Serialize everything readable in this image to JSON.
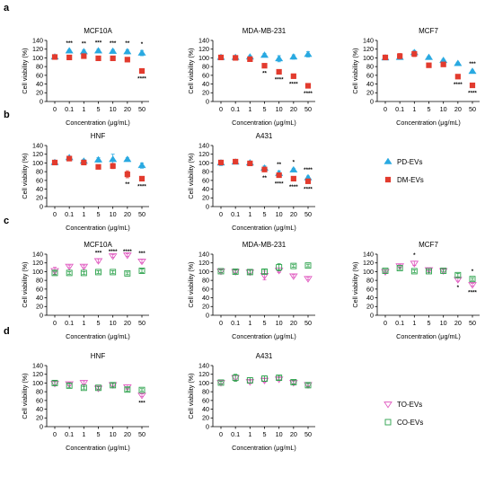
{
  "colors": {
    "PD-EVs": "#29a9e1",
    "DM-EVs": "#e23b2e",
    "TO-EVs": "#e05bc0",
    "CO-EVs": "#2aa14a"
  },
  "panels": [
    {
      "letter": "a"
    },
    {
      "letter": "b"
    },
    {
      "letter": "c"
    },
    {
      "letter": "d"
    }
  ],
  "legends": [
    {
      "entries": [
        {
          "name": "PD-EVs",
          "color": "#29a9e1",
          "marker": "triangle-up-filled"
        },
        {
          "name": "DM-EVs",
          "color": "#e23b2e",
          "marker": "square-filled"
        }
      ]
    },
    {
      "entries": [
        {
          "name": "TO-EVs",
          "color": "#e05bc0",
          "marker": "triangle-down-open"
        },
        {
          "name": "CO-EVs",
          "color": "#2aa14a",
          "marker": "square-open"
        }
      ]
    }
  ],
  "chart_data": [
    {
      "type": "scatter",
      "panel": "a",
      "title": "MCF10A",
      "xlabel": "Concentration (μg/mL)",
      "ylabel": "Cell viability (%)",
      "categories": [
        "0",
        "0.1",
        "1",
        "5",
        "10",
        "20",
        "50"
      ],
      "ylim": [
        0,
        140
      ],
      "yticks": [
        0,
        20,
        40,
        60,
        80,
        100,
        120,
        140
      ],
      "series": [
        {
          "name": "PD-EVs",
          "values": [
            102,
            116,
            114,
            116,
            115,
            114,
            111
          ],
          "errors": [
            3,
            3,
            4,
            4,
            4,
            5,
            6
          ]
        },
        {
          "name": "DM-EVs",
          "values": [
            102,
            101,
            104,
            99,
            99,
            96,
            70
          ],
          "errors": [
            3,
            3,
            3,
            3,
            3,
            3,
            3
          ]
        }
      ],
      "annotations": [
        {
          "x": "0.1",
          "text": "***",
          "pos": "above"
        },
        {
          "x": "1",
          "text": "**",
          "pos": "above"
        },
        {
          "x": "5",
          "text": "***",
          "pos": "above"
        },
        {
          "x": "10",
          "text": "***",
          "pos": "above"
        },
        {
          "x": "20",
          "text": "**",
          "pos": "above"
        },
        {
          "x": "50",
          "text": "*",
          "pos": "above"
        },
        {
          "x": "50",
          "text": "****",
          "pos": "below"
        }
      ]
    },
    {
      "type": "scatter",
      "panel": "a",
      "title": "MDA-MB-231",
      "xlabel": "Concentration (μg/mL)",
      "ylabel": "Cell viability (%)",
      "categories": [
        "0",
        "0.1",
        "1",
        "5",
        "10",
        "20",
        "50"
      ],
      "ylim": [
        0,
        140
      ],
      "yticks": [
        0,
        20,
        40,
        60,
        80,
        100,
        120,
        140
      ],
      "series": [
        {
          "name": "PD-EVs",
          "values": [
            101,
            101,
            102,
            106,
            98,
            102,
            108
          ],
          "errors": [
            3,
            3,
            3,
            4,
            7,
            5,
            6
          ]
        },
        {
          "name": "DM-EVs",
          "values": [
            101,
            100,
            97,
            82,
            68,
            58,
            36
          ],
          "errors": [
            3,
            3,
            3,
            3,
            3,
            3,
            3
          ]
        }
      ],
      "annotations": [
        {
          "x": "5",
          "text": "**",
          "pos": "below"
        },
        {
          "x": "10",
          "text": "****",
          "pos": "below"
        },
        {
          "x": "20",
          "text": "****",
          "pos": "below"
        },
        {
          "x": "50",
          "text": "****",
          "pos": "below"
        }
      ]
    },
    {
      "type": "scatter",
      "panel": "a",
      "title": "MCF7",
      "xlabel": "Concentration (μg/mL)",
      "ylabel": "Cell viability (%)",
      "categories": [
        "0",
        "0.1",
        "1",
        "5",
        "10",
        "20",
        "50"
      ],
      "ylim": [
        0,
        140
      ],
      "yticks": [
        0,
        20,
        40,
        60,
        80,
        100,
        120,
        140
      ],
      "series": [
        {
          "name": "PD-EVs",
          "values": [
            100,
            101,
            112,
            101,
            94,
            87,
            69
          ],
          "errors": [
            3,
            3,
            5,
            3,
            3,
            3,
            3
          ]
        },
        {
          "name": "DM-EVs",
          "values": [
            101,
            104,
            109,
            83,
            85,
            57,
            37
          ],
          "errors": [
            3,
            6,
            6,
            3,
            3,
            3,
            3
          ]
        }
      ],
      "annotations": [
        {
          "x": "20",
          "text": "****",
          "pos": "below"
        },
        {
          "x": "50",
          "text": "***",
          "pos": "above"
        },
        {
          "x": "50",
          "text": "****",
          "pos": "below"
        }
      ]
    },
    {
      "type": "scatter",
      "panel": "b",
      "title": "HNF",
      "xlabel": "Concentration (μg/mL)",
      "ylabel": "Cell viability (%)",
      "categories": [
        "0",
        "0.1",
        "1",
        "5",
        "10",
        "20",
        "50"
      ],
      "ylim": [
        0,
        140
      ],
      "yticks": [
        0,
        20,
        40,
        60,
        80,
        100,
        120,
        140
      ],
      "series": [
        {
          "name": "PD-EVs",
          "values": [
            101,
            112,
            104,
            107,
            108,
            108,
            94
          ],
          "errors": [
            3,
            3,
            4,
            5,
            12,
            4,
            6
          ]
        },
        {
          "name": "DM-EVs",
          "values": [
            101,
            110,
            101,
            91,
            93,
            74,
            64
          ],
          "errors": [
            3,
            3,
            3,
            3,
            6,
            8,
            3
          ]
        }
      ],
      "annotations": [
        {
          "x": "20",
          "text": "**",
          "pos": "below"
        },
        {
          "x": "50",
          "text": "****",
          "pos": "below"
        }
      ]
    },
    {
      "type": "scatter",
      "panel": "b",
      "title": "A431",
      "xlabel": "Concentration (μg/mL)",
      "ylabel": "Cell viability (%)",
      "categories": [
        "0",
        "0.1",
        "1",
        "5",
        "10",
        "20",
        "50"
      ],
      "ylim": [
        0,
        140
      ],
      "yticks": [
        0,
        20,
        40,
        60,
        80,
        100,
        120,
        140
      ],
      "series": [
        {
          "name": "PD-EVs",
          "values": [
            100,
            102,
            100,
            88,
            76,
            84,
            66
          ],
          "errors": [
            6,
            4,
            4,
            5,
            6,
            4,
            4
          ]
        },
        {
          "name": "DM-EVs",
          "values": [
            101,
            103,
            99,
            85,
            72,
            64,
            58
          ],
          "errors": [
            4,
            3,
            3,
            5,
            5,
            4,
            3
          ]
        }
      ],
      "annotations": [
        {
          "x": "5",
          "text": "**",
          "pos": "below"
        },
        {
          "x": "10",
          "text": "**",
          "pos": "above"
        },
        {
          "x": "10",
          "text": "****",
          "pos": "below"
        },
        {
          "x": "20",
          "text": "*",
          "pos": "above"
        },
        {
          "x": "20",
          "text": "****",
          "pos": "below"
        },
        {
          "x": "50",
          "text": "****",
          "pos": "above"
        },
        {
          "x": "50",
          "text": "****",
          "pos": "below"
        }
      ]
    },
    {
      "type": "scatter",
      "panel": "c",
      "title": "MCF10A",
      "xlabel": "Concentration (μg/mL)",
      "ylabel": "Cell viability (%)",
      "categories": [
        "0",
        "0.1",
        "1",
        "5",
        "10",
        "20",
        "50"
      ],
      "ylim": [
        0,
        140
      ],
      "yticks": [
        0,
        20,
        40,
        60,
        80,
        100,
        120,
        140
      ],
      "series": [
        {
          "name": "TO-EVs",
          "values": [
            102,
            112,
            112,
            125,
            136,
            138,
            124
          ],
          "errors": [
            8,
            3,
            3,
            4,
            3,
            3,
            4
          ]
        },
        {
          "name": "CO-EVs",
          "values": [
            97,
            97,
            97,
            99,
            99,
            96,
            102
          ],
          "errors": [
            4,
            3,
            3,
            3,
            3,
            3,
            4
          ]
        }
      ],
      "annotations": [
        {
          "x": "5",
          "text": "***",
          "pos": "above"
        },
        {
          "x": "10",
          "text": "****",
          "pos": "above"
        },
        {
          "x": "20",
          "text": "****",
          "pos": "above"
        },
        {
          "x": "50",
          "text": "***",
          "pos": "above"
        }
      ]
    },
    {
      "type": "scatter",
      "panel": "c",
      "title": "MDA-MB-231",
      "xlabel": "Concentration (μg/mL)",
      "ylabel": "Cell viability (%)",
      "categories": [
        "0",
        "0.1",
        "1",
        "5",
        "10",
        "20",
        "50"
      ],
      "ylim": [
        0,
        140
      ],
      "yticks": [
        0,
        20,
        40,
        60,
        80,
        100,
        120,
        140
      ],
      "series": [
        {
          "name": "TO-EVs",
          "values": [
            101,
            100,
            99,
            91,
            103,
            90,
            84
          ],
          "errors": [
            3,
            3,
            5,
            10,
            5,
            3,
            3
          ]
        },
        {
          "name": "CO-EVs",
          "values": [
            101,
            100,
            99,
            100,
            110,
            113,
            114
          ],
          "errors": [
            3,
            4,
            4,
            5,
            8,
            3,
            3
          ]
        }
      ],
      "annotations": []
    },
    {
      "type": "scatter",
      "panel": "c",
      "title": "MCF7",
      "xlabel": "Concentration (μg/mL)",
      "ylabel": "Cell viability (%)",
      "categories": [
        "0",
        "0.1",
        "1",
        "5",
        "10",
        "20",
        "50"
      ],
      "ylim": [
        0,
        140
      ],
      "yticks": [
        0,
        20,
        40,
        60,
        80,
        100,
        120,
        140
      ],
      "series": [
        {
          "name": "TO-EVs",
          "values": [
            100,
            113,
            119,
            104,
            102,
            82,
            70
          ],
          "errors": [
            3,
            3,
            5,
            3,
            3,
            4,
            3
          ]
        },
        {
          "name": "CO-EVs",
          "values": [
            102,
            108,
            101,
            101,
            102,
            92,
            83
          ],
          "errors": [
            3,
            3,
            3,
            3,
            3,
            4,
            3
          ]
        }
      ],
      "annotations": [
        {
          "x": "1",
          "text": "*",
          "pos": "above"
        },
        {
          "x": "20",
          "text": "*",
          "pos": "below"
        },
        {
          "x": "50",
          "text": "*",
          "pos": "above"
        },
        {
          "x": "50",
          "text": "****",
          "pos": "below"
        }
      ]
    },
    {
      "type": "scatter",
      "panel": "d",
      "title": "HNF",
      "xlabel": "Concentration (μg/mL)",
      "ylabel": "Cell viability (%)",
      "categories": [
        "0",
        "0.1",
        "1",
        "5",
        "10",
        "20",
        "50"
      ],
      "ylim": [
        0,
        140
      ],
      "yticks": [
        0,
        20,
        40,
        60,
        80,
        100,
        120,
        140
      ],
      "series": [
        {
          "name": "TO-EVs",
          "values": [
            99,
            98,
            101,
            88,
            96,
            91,
            72
          ],
          "errors": [
            4,
            4,
            4,
            3,
            3,
            5,
            3
          ]
        },
        {
          "name": "CO-EVs",
          "values": [
            100,
            94,
            89,
            89,
            95,
            85,
            84
          ],
          "errors": [
            5,
            5,
            3,
            3,
            4,
            4,
            3
          ]
        }
      ],
      "annotations": [
        {
          "x": "50",
          "text": "***",
          "pos": "below"
        }
      ]
    },
    {
      "type": "scatter",
      "panel": "d",
      "title": "A431",
      "xlabel": "Concentration (μg/mL)",
      "ylabel": "Cell viability (%)",
      "categories": [
        "0",
        "0.1",
        "1",
        "5",
        "10",
        "20",
        "50"
      ],
      "ylim": [
        0,
        140
      ],
      "yticks": [
        0,
        20,
        40,
        60,
        80,
        100,
        120,
        140
      ],
      "series": [
        {
          "name": "TO-EVs",
          "values": [
            101,
            112,
            103,
            106,
            109,
            101,
            96
          ],
          "errors": [
            3,
            6,
            3,
            4,
            3,
            3,
            3
          ]
        },
        {
          "name": "CO-EVs",
          "values": [
            101,
            112,
            106,
            110,
            112,
            102,
            95
          ],
          "errors": [
            3,
            8,
            6,
            6,
            5,
            4,
            4
          ]
        }
      ],
      "annotations": []
    }
  ]
}
